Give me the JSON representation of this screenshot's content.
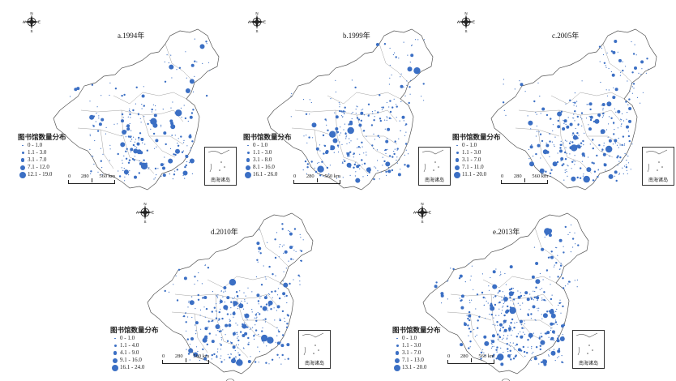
{
  "legend_title": "图书馆数量分布",
  "inset_label": "南海诸岛",
  "compass": {
    "n": "N",
    "s": "S",
    "e": "E",
    "w": "W"
  },
  "scale": {
    "t0": "0",
    "t1": "280",
    "t2": "560 km"
  },
  "colors": {
    "dot": "#3b6fc4",
    "outline": "#555555"
  },
  "panels": [
    {
      "title": "a.1994年",
      "legend": [
        "0 - 1.0",
        "1.1 - 3.0",
        "3.1 - 7.0",
        "7.1 - 12.0",
        "12.1 - 19.0"
      ]
    },
    {
      "title": "b.1999年",
      "legend": [
        "0 - 1.0",
        "1.1 - 3.0",
        "3.1 - 8.0",
        "8.1 - 16.0",
        "16.1 - 26.0"
      ]
    },
    {
      "title": "c.2005年",
      "legend": [
        "0 - 1.0",
        "1.1 - 3.0",
        "3.1 - 7.0",
        "7.1 - 11.0",
        "11.1 - 20.0"
      ]
    },
    {
      "title": "d.2010年",
      "legend": [
        "0 - 1.0",
        "1.1 - 4.0",
        "4.1 - 9.0",
        "9.1 - 16.0",
        "16.1 - 24.0"
      ]
    },
    {
      "title": "e.2013年",
      "legend": [
        "0 - 1.0",
        "1.1 - 3.0",
        "3.1 - 7.0",
        "7.1 - 13.0",
        "13.1 - 20.0"
      ]
    }
  ]
}
